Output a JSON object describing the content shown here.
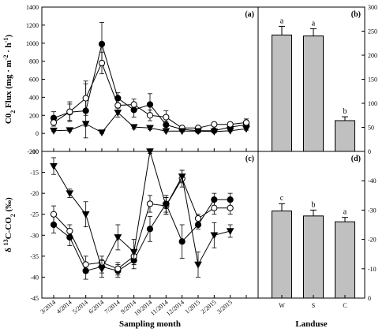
{
  "chart_data": [
    {
      "id": "a",
      "panel_label": "(a)",
      "type": "line",
      "ylabel": "CO2 Flux (mg · m-2 · h-1)",
      "ylabel_parts": {
        "pre": "C0",
        "sub1": "2",
        "mid": " Flux (mg · m",
        "sup1": "-2",
        "mid2": " · h",
        "sup2": "-1",
        "post": ")"
      },
      "ylim": [
        -200,
        1400
      ],
      "yticks": [
        -200,
        0,
        200,
        400,
        600,
        800,
        1000,
        1200,
        1400
      ],
      "x_count": 13,
      "series": [
        {
          "marker": "circle-filled",
          "values": [
            170,
            235,
            250,
            990,
            390,
            260,
            320,
            95,
            45,
            30,
            30,
            70,
            95
          ],
          "errors": [
            70,
            90,
            300,
            240,
            60,
            80,
            120,
            40,
            20,
            10,
            15,
            20,
            30
          ]
        },
        {
          "marker": "circle-open",
          "values": [
            120,
            240,
            390,
            780,
            310,
            320,
            200,
            180,
            60,
            60,
            100,
            100,
            120
          ],
          "errors": [
            40,
            110,
            190,
            120,
            60,
            60,
            60,
            70,
            20,
            15,
            20,
            20,
            40
          ]
        },
        {
          "marker": "triangle-down",
          "values": [
            30,
            35,
            105,
            10,
            230,
            70,
            60,
            25,
            25,
            25,
            20,
            30,
            50
          ],
          "errors": [
            10,
            10,
            25,
            10,
            50,
            20,
            20,
            10,
            8,
            8,
            6,
            10,
            15
          ]
        }
      ]
    },
    {
      "id": "b",
      "panel_label": "(b)",
      "type": "bar",
      "ylim": [
        0,
        300
      ],
      "yticks": [
        0,
        50,
        100,
        150,
        200,
        250,
        300
      ],
      "categories": [
        "W",
        "S",
        "C"
      ],
      "values": [
        242,
        240,
        64
      ],
      "errors": [
        18,
        15,
        8
      ],
      "letters": [
        "a",
        "a",
        "b"
      ]
    },
    {
      "id": "c",
      "panel_label": "(c)",
      "type": "line",
      "ylabel": "δ 13C-CO2 (‰)",
      "ylabel_parts": {
        "pre": "δ ",
        "sup1": "13",
        "mid": "C-CO",
        "sub1": "2",
        "post": " (‰)"
      },
      "ylim": [
        -45,
        -10
      ],
      "yticks": [
        -45,
        -40,
        -35,
        -30,
        -25,
        -20,
        -15,
        -10
      ],
      "x_count": 13,
      "xticks": [
        "3/2014",
        "4/2014",
        "5/2014",
        "6/2014",
        "7/2014",
        "9/2014",
        "10/2014",
        "11/2014",
        "12/2014",
        "1/2015",
        "2/2015",
        "3/2015"
      ],
      "xlabel": "Sampling month",
      "series": [
        {
          "marker": "circle-filled",
          "values": [
            -27.5,
            -30.5,
            -38.5,
            -37.5,
            -38.5,
            -36,
            -28.5,
            -22.5,
            -31.5,
            -27.5,
            -21.5,
            -21.5
          ],
          "errors": [
            2.0,
            2.0,
            2.0,
            1.5,
            1.5,
            2.0,
            3.0,
            2.0,
            4.0,
            1.0,
            1.5,
            1.5
          ]
        },
        {
          "marker": "circle-open",
          "values": [
            -25,
            -29,
            -37,
            -36.5,
            -38,
            -35,
            -22.5,
            -23,
            -16.5,
            -26,
            -23.5,
            -23.5
          ],
          "errors": [
            2.0,
            1.5,
            2.0,
            1.5,
            1.5,
            1.5,
            2.0,
            2.0,
            2.0,
            1.0,
            1.5,
            1.5
          ]
        },
        {
          "marker": "triangle-down",
          "values": [
            -13.5,
            -20,
            -25,
            -38,
            -30.5,
            -34,
            -10,
            -23,
            -16,
            -37,
            -30,
            -29
          ],
          "errors": [
            2.0,
            1.0,
            3.0,
            2.0,
            3.0,
            3.0,
            0.5,
            2.0,
            1.5,
            3.0,
            3.0,
            1.5
          ]
        }
      ]
    },
    {
      "id": "d",
      "panel_label": "(d)",
      "type": "bar",
      "ylim": [
        0,
        -50
      ],
      "yticks": [
        0,
        -10,
        -20,
        -30,
        -40
      ],
      "categories": [
        "W",
        "S",
        "C"
      ],
      "values": [
        -29.7,
        -28,
        -26
      ],
      "errors": [
        2.5,
        2.0,
        1.5
      ],
      "letters": [
        "c",
        "b",
        "a"
      ],
      "xlabel": "Landuse"
    }
  ]
}
